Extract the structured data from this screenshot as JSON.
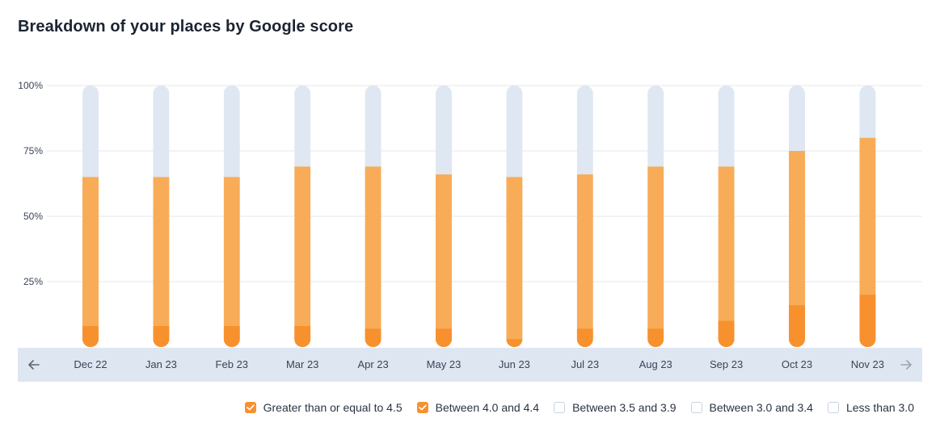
{
  "title": "Breakdown of your places by Google score",
  "colors": {
    "track": "#dfe7f2",
    "gte45": "#f7912e",
    "between40_44": "#f8ac58",
    "band": "#dde6f1",
    "grid": "#e3e7ed",
    "checkbox_checked": "#f7912e"
  },
  "nav": {
    "prev_icon": "arrow-left-icon",
    "next_icon": "arrow-right-icon"
  },
  "legend": [
    {
      "label": "Greater than or equal to 4.5",
      "checked": true,
      "color": "#f7912e"
    },
    {
      "label": "Between 4.0 and 4.4",
      "checked": true,
      "color": "#f8ac58"
    },
    {
      "label": "Between 3.5 and 3.9",
      "checked": false,
      "color": "#dfe7f2"
    },
    {
      "label": "Between 3.0 and 3.4",
      "checked": false,
      "color": "#dfe7f2"
    },
    {
      "label": "Less than 3.0",
      "checked": false,
      "color": "#dfe7f2"
    }
  ],
  "chart_data": {
    "type": "bar",
    "stacked": true,
    "title": "Breakdown of your places by Google score",
    "categories": [
      "Dec 22",
      "Jan 23",
      "Feb 23",
      "Mar 23",
      "Apr 23",
      "May 23",
      "Jun 23",
      "Jul 23",
      "Aug 23",
      "Sep 23",
      "Oct 23",
      "Nov 23"
    ],
    "y_ticks": [
      "25%",
      "50%",
      "75%",
      "100%"
    ],
    "ylim": [
      0,
      100
    ],
    "grid": true,
    "legend_position": "bottom-right",
    "series": [
      {
        "name": "Greater than or equal to 4.5",
        "values": [
          8,
          8,
          8,
          8,
          7,
          7,
          3,
          7,
          7,
          10,
          16,
          20
        ]
      },
      {
        "name": "Between 4.0 and 4.4",
        "values": [
          57,
          57,
          57,
          61,
          62,
          59,
          62,
          59,
          62,
          59,
          59,
          60
        ]
      }
    ]
  }
}
